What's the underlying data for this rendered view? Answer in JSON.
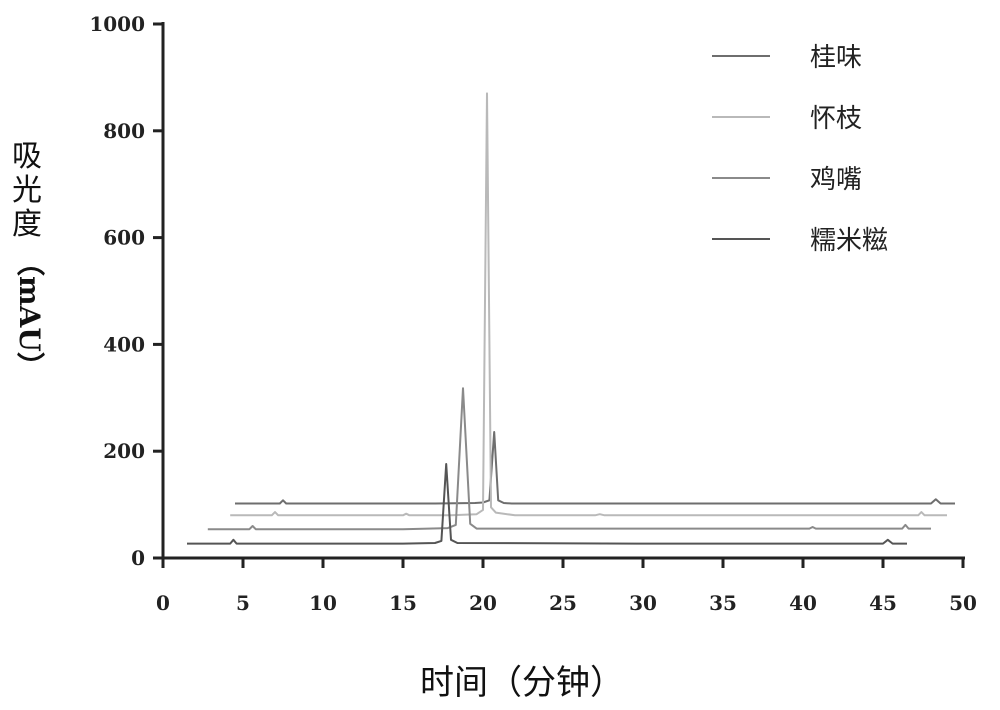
{
  "chart_data": {
    "type": "line",
    "xlabel": "时间（分钟）",
    "ylabel_chars": [
      "吸",
      "光",
      "度"
    ],
    "ylabel_unit": "（mAU）",
    "xlim": [
      0,
      50
    ],
    "ylim": [
      0,
      1000
    ],
    "xticks": [
      0,
      5,
      10,
      15,
      20,
      25,
      30,
      35,
      40,
      45,
      50
    ],
    "yticks": [
      0,
      200,
      400,
      600,
      800,
      1000
    ],
    "grid": false,
    "legend_position": "top-right",
    "series": [
      {
        "name": "桂味",
        "color": "#6e6e6e",
        "x": [
          4.5,
          7.3,
          7.5,
          7.7,
          15.0,
          17.0,
          19.5,
          20.0,
          20.4,
          20.7,
          20.95,
          21.3,
          21.8,
          42.0,
          48.0,
          48.3,
          48.6,
          49.5
        ],
        "y": [
          102,
          102,
          108,
          102,
          102,
          102,
          103,
          104,
          108,
          236,
          108,
          103,
          102,
          102,
          102,
          110,
          102,
          102
        ]
      },
      {
        "name": "怀枝",
        "color": "#b9b9b9",
        "x": [
          4.2,
          6.8,
          7.0,
          7.2,
          15.0,
          15.2,
          15.4,
          18.0,
          19.6,
          20.0,
          20.25,
          20.5,
          20.8,
          22.0,
          27.0,
          27.3,
          27.6,
          47.2,
          47.4,
          47.6,
          49.0
        ],
        "y": [
          80,
          80,
          86,
          80,
          80,
          83,
          80,
          80,
          82,
          90,
          870,
          95,
          85,
          80,
          80,
          82,
          80,
          80,
          86,
          80,
          80
        ]
      },
      {
        "name": "鸡嘴",
        "color": "#8a8a8a",
        "x": [
          2.8,
          5.4,
          5.6,
          5.8,
          15.0,
          17.8,
          18.3,
          18.75,
          19.2,
          19.6,
          40.4,
          40.6,
          40.8,
          46.2,
          46.4,
          46.6,
          48.0
        ],
        "y": [
          54,
          54,
          60,
          54,
          54,
          56,
          62,
          318,
          64,
          55,
          55,
          58,
          55,
          55,
          62,
          55,
          55
        ]
      },
      {
        "name": "糯米糍",
        "color": "#555555",
        "x": [
          1.5,
          4.2,
          4.4,
          4.6,
          15.0,
          17.0,
          17.4,
          17.7,
          18.0,
          18.4,
          30.0,
          45.0,
          45.3,
          45.6,
          46.5
        ],
        "y": [
          27,
          27,
          34,
          27,
          27,
          28,
          32,
          176,
          34,
          28,
          27,
          27,
          34,
          27,
          27
        ]
      }
    ]
  }
}
